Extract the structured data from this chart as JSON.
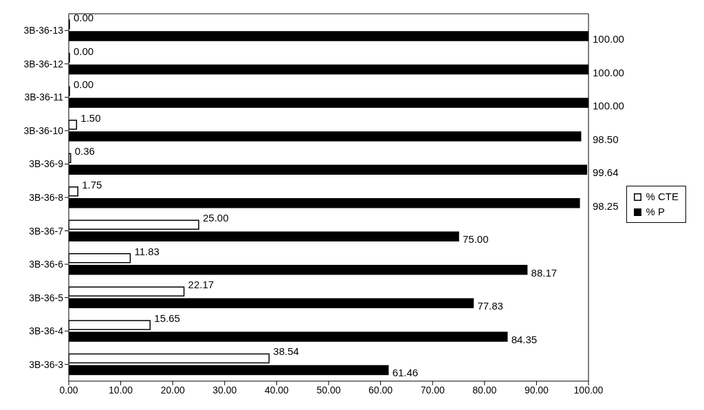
{
  "chart_data": {
    "type": "bar",
    "orientation": "horizontal",
    "categories": [
      "3B-36-13",
      "3B-36-12",
      "3B-36-11",
      "3B-36-10",
      "3B-36-9",
      "3B-36-8",
      "3B-36-7",
      "3B-36-6",
      "3B-36-5",
      "3B-36-4",
      "3B-36-3"
    ],
    "series": [
      {
        "name": "% CTE",
        "color": "#ffffff",
        "values": [
          0,
          0,
          0,
          1.5,
          0.36,
          1.75,
          25,
          11.83,
          22.17,
          15.65,
          38.54
        ],
        "value_labels": [
          "0.00",
          "0.00",
          "0.00",
          "1.50",
          "0.36",
          "1.75",
          "25.00",
          "11.83",
          "22.17",
          "15.65",
          "38.54"
        ]
      },
      {
        "name": "% P",
        "color": "#000000",
        "values": [
          100,
          100,
          100,
          98.5,
          99.64,
          98.25,
          75,
          88.17,
          77.83,
          84.35,
          61.46
        ],
        "value_labels": [
          "100.00",
          "100.00",
          "100.00",
          "98.50",
          "99.64",
          "98.25",
          "75.00",
          "88.17",
          "77.83",
          "84.35",
          "61.46"
        ]
      }
    ],
    "xlim": [
      0,
      100
    ],
    "xticks": [
      {
        "value": 0,
        "label": "0.00"
      },
      {
        "value": 10,
        "label": "10.00"
      },
      {
        "value": 20,
        "label": "20.00"
      },
      {
        "value": 30,
        "label": "30.00"
      },
      {
        "value": 40,
        "label": "40.00"
      },
      {
        "value": 50,
        "label": "50.00"
      },
      {
        "value": 60,
        "label": "60.00"
      },
      {
        "value": 70,
        "label": "70.00"
      },
      {
        "value": 80,
        "label": "80.00"
      },
      {
        "value": 90,
        "label": "90.00"
      },
      {
        "value": 100,
        "label": "100.00"
      }
    ],
    "grid": false,
    "legend": "right"
  }
}
